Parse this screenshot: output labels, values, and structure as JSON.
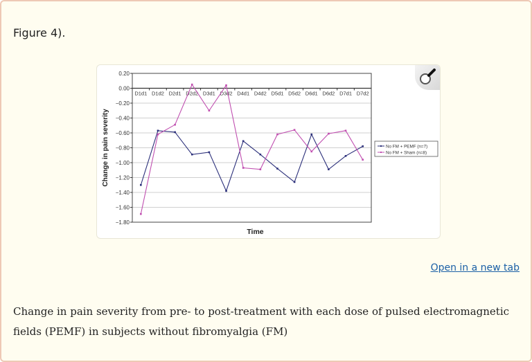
{
  "page": {
    "figure_ref": "Figure 4).",
    "open_link": "Open in a new tab",
    "caption": "Change in pain severity from pre- to post-treatment with each dose of pulsed electromagnetic fields (PEMF) in subjects without fibromyalgia (FM)",
    "zoom_icon": "magnifier-icon"
  },
  "chart_data": {
    "type": "line",
    "title": "",
    "xlabel": "Time",
    "ylabel": "Change in pain severity",
    "ylim": [
      -1.8,
      0.2
    ],
    "yticks": [
      "0.20",
      "0.00",
      "−0.20",
      "−0.40",
      "−0.60",
      "−0.80",
      "−1.00",
      "−1.20",
      "−1.40",
      "−1.60",
      "−1.80"
    ],
    "grid": true,
    "legend_position": "right",
    "categories": [
      "D1d1",
      "D1d2",
      "D2d1",
      "D2d2",
      "D3d1",
      "D3d2",
      "D4d1",
      "D4d2",
      "D5d1",
      "D5d2",
      "D6d1",
      "D6d2",
      "D7d1",
      "D7d2"
    ],
    "series": [
      {
        "name": "No FM + PEMF (n=7)",
        "color": "#2b2f7a",
        "values": [
          -1.3,
          -0.57,
          -0.59,
          -0.89,
          -0.86,
          -1.38,
          -0.71,
          -0.89,
          -1.08,
          -1.26,
          -0.62,
          -1.09,
          -0.91,
          -0.78
        ]
      },
      {
        "name": "No FM + Sham (n=8)",
        "color": "#c04fb0",
        "values": [
          -1.69,
          -0.62,
          -0.49,
          0.05,
          -0.3,
          0.04,
          -1.07,
          -1.09,
          -0.62,
          -0.56,
          -0.85,
          -0.61,
          -0.57,
          -0.96
        ]
      }
    ]
  }
}
